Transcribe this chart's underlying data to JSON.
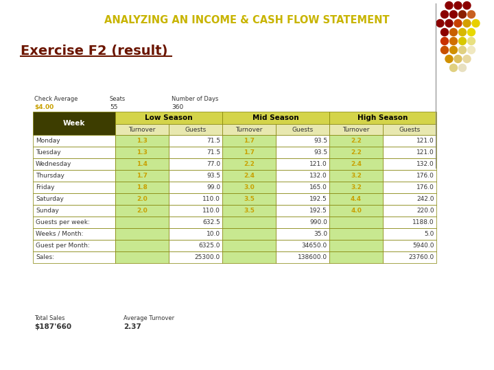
{
  "title": "ANALYZING AN INCOME & CASH FLOW STATEMENT",
  "subtitle": "Exercise F2 (result)",
  "title_color": "#c8b400",
  "subtitle_color": "#6B1500",
  "bg_color": "#ffffff",
  "check_avg_label": "Check Average",
  "check_avg_value": "$4.00",
  "seats_label": "Seats",
  "seats_value": "55",
  "num_days_label": "Number of Days",
  "num_days_value": "360",
  "rows": [
    [
      "Monday",
      "1.3",
      "71.5",
      "1.7",
      "93.5",
      "2.2",
      "121.0"
    ],
    [
      "Tuesday",
      "1.3",
      "71.5",
      "1.7",
      "93.5",
      "2.2",
      "121.0"
    ],
    [
      "Wednesday",
      "1.4",
      "77.0",
      "2.2",
      "121.0",
      "2.4",
      "132.0"
    ],
    [
      "Thursday",
      "1.7",
      "93.5",
      "2.4",
      "132.0",
      "3.2",
      "176.0"
    ],
    [
      "Friday",
      "1.8",
      "99.0",
      "3.0",
      "165.0",
      "3.2",
      "176.0"
    ],
    [
      "Saturday",
      "2.0",
      "110.0",
      "3.5",
      "192.5",
      "4.4",
      "242.0"
    ],
    [
      "Sunday",
      "2.0",
      "110.0",
      "3.5",
      "192.5",
      "4.0",
      "220.0"
    ]
  ],
  "summary_rows": [
    [
      "Guests per week:",
      "",
      "632.5",
      "",
      "990.0",
      "",
      "1188.0"
    ],
    [
      "Weeks / Month:",
      "",
      "10.0",
      "",
      "35.0",
      "",
      "5.0"
    ],
    [
      "Guest per Month:",
      "",
      "6325.0",
      "",
      "34650.0",
      "",
      "5940.0"
    ],
    [
      "Sales:",
      "",
      "25300.0",
      "",
      "138600.0",
      "",
      "23760.0"
    ]
  ],
  "total_sales_label": "Total Sales",
  "total_sales_value": "$187'660",
  "avg_turnover_label": "Average Turnover",
  "avg_turnover_value": "2.37",
  "dots": [
    [
      3,
      "#8B0000"
    ],
    [
      3,
      "#8B0000"
    ],
    [
      3,
      "#8B0000"
    ],
    [
      4,
      "#8B0000"
    ],
    [
      4,
      "#8B0000"
    ],
    [
      4,
      "#8B2000"
    ],
    [
      4,
      "#c86020"
    ],
    [
      5,
      "#8B0000"
    ],
    [
      5,
      "#8B1000"
    ],
    [
      5,
      "#c84000"
    ],
    [
      5,
      "#d4a000"
    ],
    [
      5,
      "#e8d000"
    ],
    [
      4,
      "#8B0000"
    ],
    [
      4,
      "#c86000"
    ],
    [
      4,
      "#d8b800"
    ],
    [
      4,
      "#e8d800"
    ],
    [
      5,
      "#c83000"
    ],
    [
      5,
      "#d07000"
    ],
    [
      5,
      "#d8c800"
    ],
    [
      5,
      "#e8e080"
    ],
    [
      4,
      "#c85000"
    ],
    [
      4,
      "#d09000"
    ],
    [
      4,
      "#e0d080"
    ],
    [
      4,
      "#f0e8c0"
    ],
    [
      3,
      "#d09000"
    ],
    [
      3,
      "#dcc060"
    ],
    [
      3,
      "#e8d8a0"
    ],
    [
      2,
      "#e0d080"
    ],
    [
      2,
      "#e8e0c0"
    ]
  ]
}
